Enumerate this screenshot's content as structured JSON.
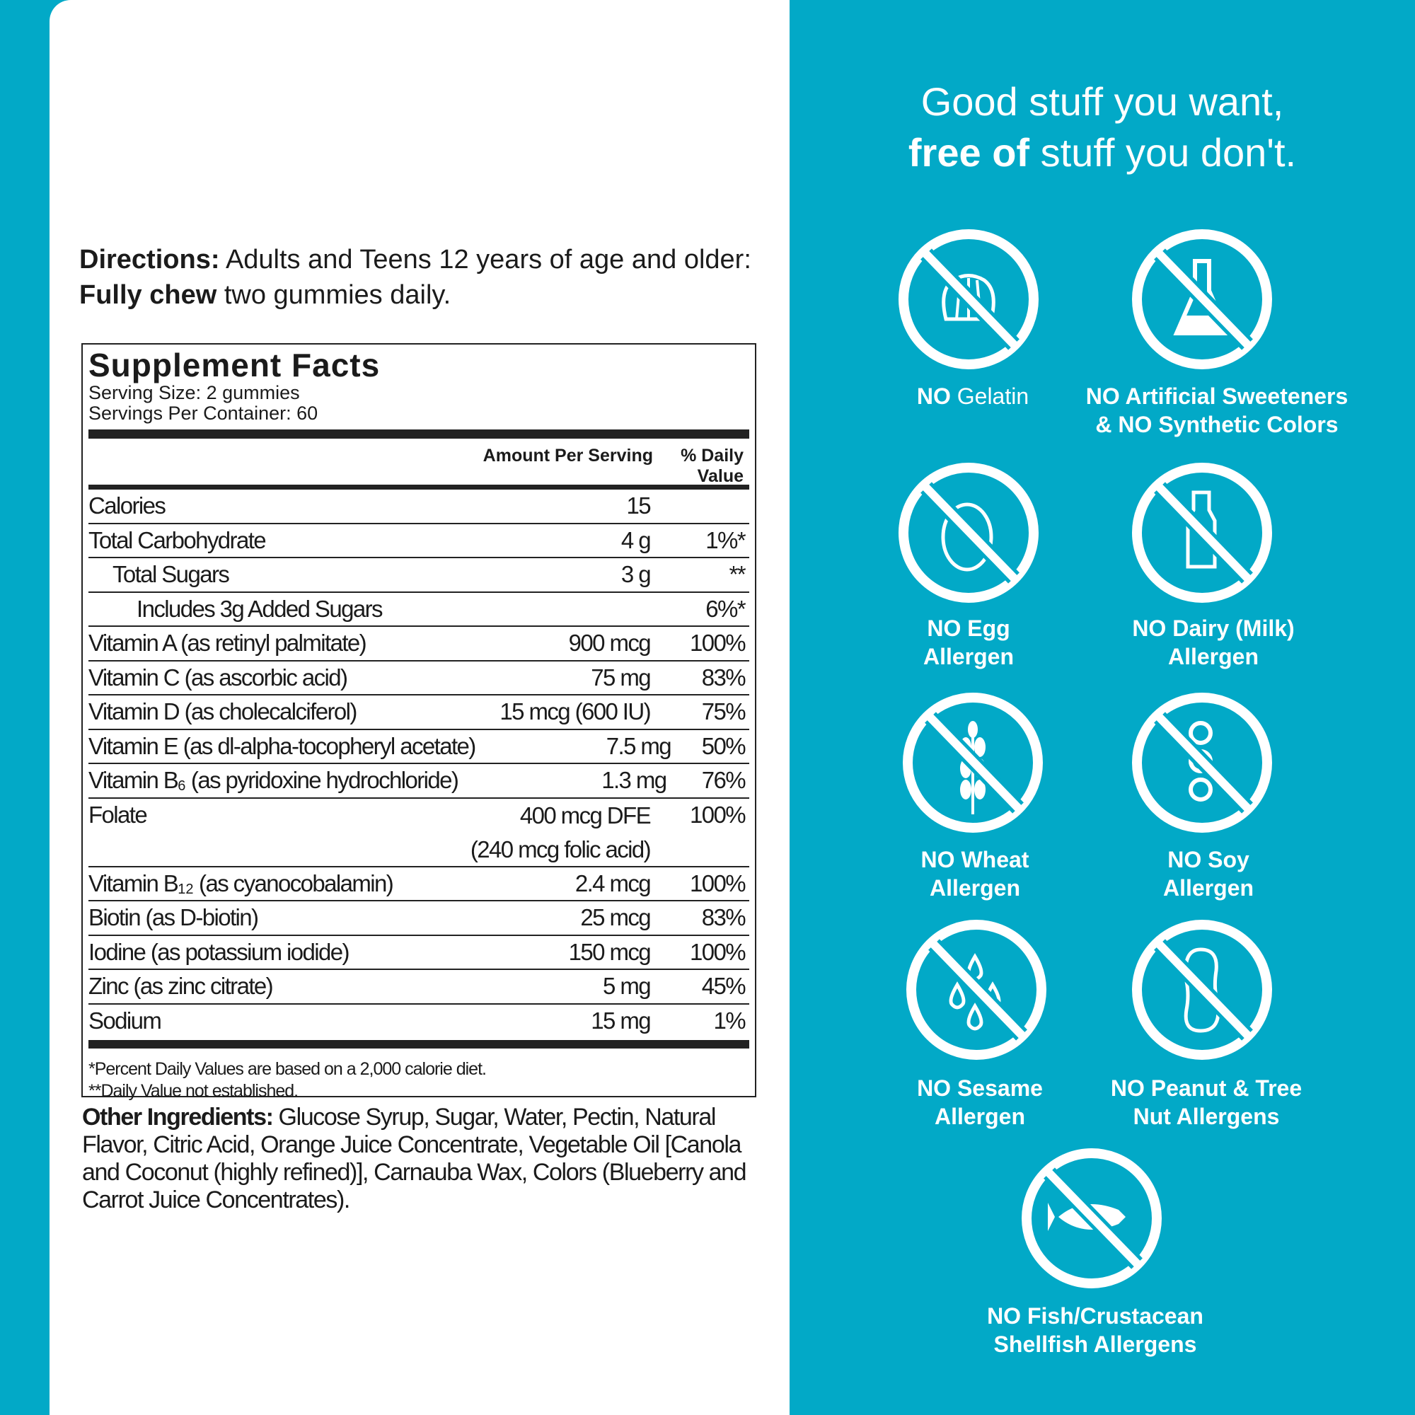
{
  "colors": {
    "background": "#02a9c7",
    "panel": "#ffffff",
    "text": "#1b1b1b"
  },
  "directions": {
    "label": "Directions:",
    "text1": " Adults and Teens 12 years of age and older: ",
    "bold": "Fully chew",
    "text2": " two gummies daily."
  },
  "facts": {
    "title": "Supplement Facts",
    "serving_size": "Serving Size: 2 gummies",
    "servings_per_container": "Servings Per Container: 60",
    "col_amount": "Amount Per Serving",
    "col_dv": "% Daily Value",
    "rows": [
      {
        "name": "Calories",
        "amount": "15",
        "dv": ""
      },
      {
        "name": "Total Carbohydrate",
        "amount": "4 g",
        "dv": "1%*"
      },
      {
        "name": "Total Sugars",
        "amount": "3 g",
        "dv": "**"
      },
      {
        "name": "Includes 3g Added Sugars",
        "amount": "",
        "dv": "6%*"
      },
      {
        "name": "Vitamin A (as retinyl palmitate)",
        "amount": "900 mcg",
        "dv": "100%"
      },
      {
        "name": "Vitamin C (as ascorbic acid)",
        "amount": "75 mg",
        "dv": "83%"
      },
      {
        "name": "Vitamin D (as cholecalciferol)",
        "amount": "15 mcg (600 IU)",
        "dv": "75%"
      },
      {
        "name": "Vitamin E (as dl-alpha-tocopheryl acetate)",
        "amount": "7.5 mg",
        "dv": "50%"
      },
      {
        "name_pre": "Vitamin B",
        "sub": "6",
        "name_post": " (as pyridoxine hydrochloride)",
        "amount": "1.3 mg",
        "dv": "76%"
      },
      {
        "name": "Folate",
        "amount": "400 mcg DFE\n(240 mcg folic acid)",
        "dv": "100%"
      },
      {
        "name_pre": "Vitamin B",
        "sub": "12",
        "name_post": " (as cyanocobalamin)",
        "amount": "2.4 mcg",
        "dv": "100%"
      },
      {
        "name": "Biotin (as D-biotin)",
        "amount": "25 mcg",
        "dv": "83%"
      },
      {
        "name": "Iodine (as potassium iodide)",
        "amount": "150 mcg",
        "dv": "100%"
      },
      {
        "name": "Zinc (as zinc citrate)",
        "amount": "5 mg",
        "dv": "45%"
      },
      {
        "name": "Sodium",
        "amount": "15 mg",
        "dv": "1%"
      }
    ],
    "footnote1": "*Percent Daily Values are based on a 2,000 calorie diet.",
    "footnote2": "**Daily Value not established."
  },
  "other_ingredients": {
    "label": "Other Ingredients:",
    "text": " Glucose Syrup, Sugar, Water, Pectin, Natural Flavor, Citric Acid, Orange Juice Concentrate, Vegetable Oil [Canola and Coconut (highly refined)], Carnauba Wax, Colors (Blueberry and Carrot Juice Concentrates)."
  },
  "headline": {
    "line1": "Good stuff you want,",
    "bold": "free of",
    "line2_rest": " stuff you don't."
  },
  "badges": [
    {
      "icon": "gelatin-icon",
      "bold": "NO",
      "normal": " Gelatin",
      "line2": ""
    },
    {
      "icon": "flask-icon",
      "bold": "NO Artificial Sweeteners",
      "normal": "",
      "line2": "& NO Synthetic Colors"
    },
    {
      "icon": "egg-icon",
      "bold": "NO Egg",
      "normal": "",
      "line2": "Allergen"
    },
    {
      "icon": "milk-bottle-icon",
      "bold": "NO Dairy (Milk)",
      "normal": "",
      "line2": "Allergen"
    },
    {
      "icon": "wheat-icon",
      "bold": "NO Wheat",
      "normal": "",
      "line2": "Allergen"
    },
    {
      "icon": "soy-icon",
      "bold": "NO Soy",
      "normal": "",
      "line2": "Allergen"
    },
    {
      "icon": "sesame-icon",
      "bold": "NO Sesame",
      "normal": "",
      "line2": "Allergen"
    },
    {
      "icon": "peanut-icon",
      "bold": "NO Peanut & Tree",
      "normal": "",
      "line2": "Nut Allergens"
    },
    {
      "icon": "fish-icon",
      "bold": "NO Fish/Crustacean",
      "normal": "",
      "line2": "Shellfish Allergens"
    }
  ]
}
